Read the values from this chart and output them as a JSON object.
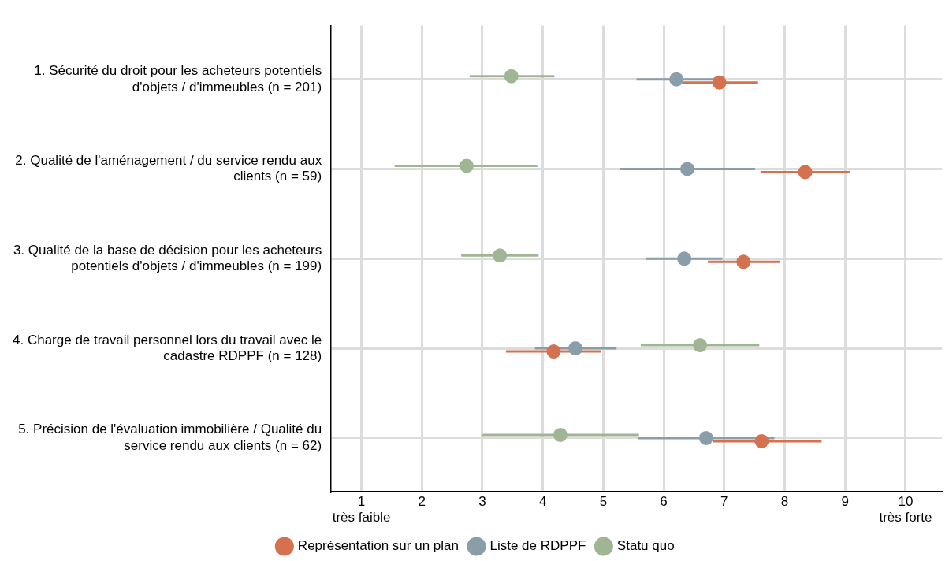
{
  "chart_data": {
    "type": "scatter",
    "orientation": "horizontal",
    "categories": [
      "1. Sécurité du droit pour les acheteurs potentiels d'objets / d'immeubles (n = 201)",
      "2. Qualité de l'aménagement / du service rendu aux clients (n = 59)",
      "3. Qualité de la base de décision pour les acheteurs potentiels d'objets / d'immeubles (n = 199)",
      "4. Charge de travail personnel lors du travail avec le cadastre RDPPF (n = 128)",
      "5. Précision de l'évaluation immobilière / Qualité du service rendu aux clients (n = 62)"
    ],
    "series": [
      {
        "name": "Représentation sur un plan",
        "color": "#d4714f",
        "values": [
          6.92,
          8.34,
          7.32,
          4.18,
          7.62
        ],
        "errors": [
          [
            6.3,
            7.56
          ],
          [
            7.6,
            9.08
          ],
          [
            6.73,
            7.92
          ],
          [
            3.39,
            4.96
          ],
          [
            6.82,
            8.61
          ]
        ]
      },
      {
        "name": "Liste de RDPPF",
        "color": "#8a9ea9",
        "values": [
          6.21,
          6.39,
          6.34,
          4.54,
          6.7
        ],
        "errors": [
          [
            5.55,
            6.87
          ],
          [
            5.27,
            7.51
          ],
          [
            5.7,
            6.97
          ],
          [
            3.87,
            5.22
          ],
          [
            5.58,
            7.83
          ]
        ]
      },
      {
        "name": "Statu quo",
        "color": "#9fb593",
        "values": [
          3.48,
          2.74,
          3.29,
          6.6,
          4.29
        ],
        "errors": [
          [
            2.79,
            4.19
          ],
          [
            1.55,
            3.91
          ],
          [
            2.65,
            3.93
          ],
          [
            5.62,
            7.58
          ],
          [
            2.99,
            5.59
          ]
        ]
      }
    ],
    "xlim": [
      0.5,
      10.6
    ],
    "xticks": [
      {
        "value": 1,
        "label": "1\ntrès faible"
      },
      2,
      3,
      4,
      5,
      6,
      7,
      8,
      9,
      {
        "value": 10,
        "label": "10\ntrès forte"
      }
    ],
    "grid": true,
    "legend": "bottom",
    "marker": "circle"
  }
}
